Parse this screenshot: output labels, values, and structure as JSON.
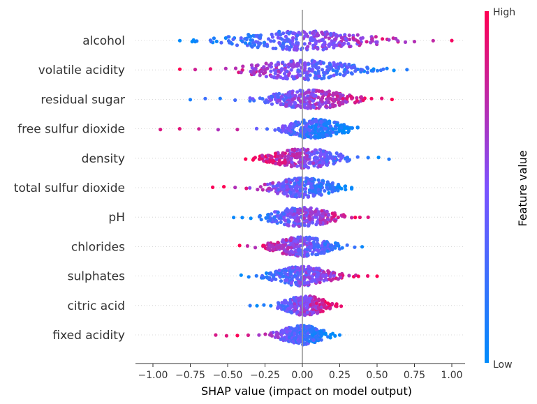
{
  "chart_data": {
    "type": "scatter",
    "subtype": "shap-beeswarm",
    "title": "",
    "xlabel": "SHAP value (impact on model output)",
    "ylabel": "",
    "xlim": [
      -1.02,
      1.08
    ],
    "xticks": [
      -1.0,
      -0.75,
      -0.5,
      -0.25,
      0.0,
      0.25,
      0.5,
      0.75,
      1.0
    ],
    "xtick_labels": [
      "−1.00",
      "−0.75",
      "−0.50",
      "−0.25",
      "0.00",
      "0.25",
      "0.50",
      "0.75",
      "1.00"
    ],
    "grid": false,
    "colorbar": {
      "title": "Feature value",
      "high_label": "High",
      "low_label": "Low",
      "high_color": "#ff0052",
      "low_color": "#008bfb"
    },
    "features": [
      {
        "name": "alcohol",
        "min": -0.82,
        "max": 1.0,
        "center": 0.0,
        "spread": 0.28,
        "direction": 1
      },
      {
        "name": "volatile acidity",
        "min": -0.82,
        "max": 0.7,
        "center": 0.0,
        "spread": 0.22,
        "direction": -1
      },
      {
        "name": "residual sugar",
        "min": -0.75,
        "max": 0.6,
        "center": 0.05,
        "spread": 0.16,
        "direction": 1
      },
      {
        "name": "free sulfur dioxide",
        "min": -0.95,
        "max": 0.37,
        "center": 0.08,
        "spread": 0.12,
        "direction": -1
      },
      {
        "name": "density",
        "min": -0.38,
        "max": 0.58,
        "center": 0.02,
        "spread": 0.14,
        "direction": -1
      },
      {
        "name": "total sulfur dioxide",
        "min": -0.6,
        "max": 0.33,
        "center": 0.0,
        "spread": 0.13,
        "direction": -1
      },
      {
        "name": "pH",
        "min": -0.46,
        "max": 0.44,
        "center": 0.0,
        "spread": 0.13,
        "direction": 1
      },
      {
        "name": "chlorides",
        "min": -0.42,
        "max": 0.4,
        "center": 0.0,
        "spread": 0.12,
        "direction": -1
      },
      {
        "name": "sulphates",
        "min": -0.41,
        "max": 0.5,
        "center": 0.0,
        "spread": 0.12,
        "direction": 1
      },
      {
        "name": "citric acid",
        "min": -0.35,
        "max": 0.26,
        "center": 0.02,
        "spread": 0.09,
        "direction": 1
      },
      {
        "name": "fixed acidity",
        "min": -0.58,
        "max": 0.25,
        "center": 0.0,
        "spread": 0.09,
        "direction": -1
      }
    ]
  }
}
